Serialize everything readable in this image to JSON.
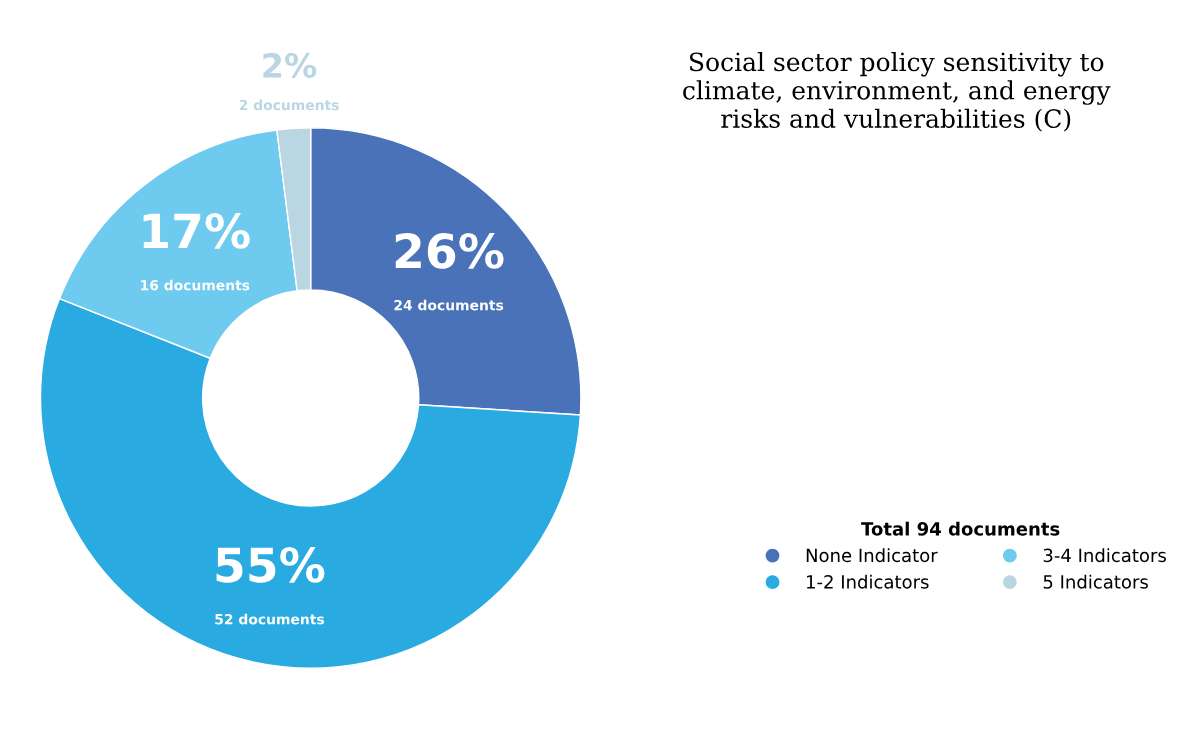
{
  "chart_data": {
    "type": "donut",
    "title": "Social sector policy sensitivity to\nclimate, environment, and energy\nrisks and vulnerabilities (C)",
    "categories": [
      "None Indicator",
      "1-2 Indicators",
      "3-4 Indicators",
      "5 Indicators"
    ],
    "values": [
      26,
      55,
      17,
      2
    ],
    "colors": [
      "#4a72b8",
      "#29abe2",
      "#6ecbef",
      "#b9d6e2"
    ],
    "value_labels": [
      "26%",
      "55%",
      "17%",
      "2%"
    ],
    "annotations": [
      "24 documents",
      "52 documents",
      "16 documents",
      "2 documents"
    ],
    "legend_title": "Total 94 documents",
    "legend": "bottom right"
  }
}
